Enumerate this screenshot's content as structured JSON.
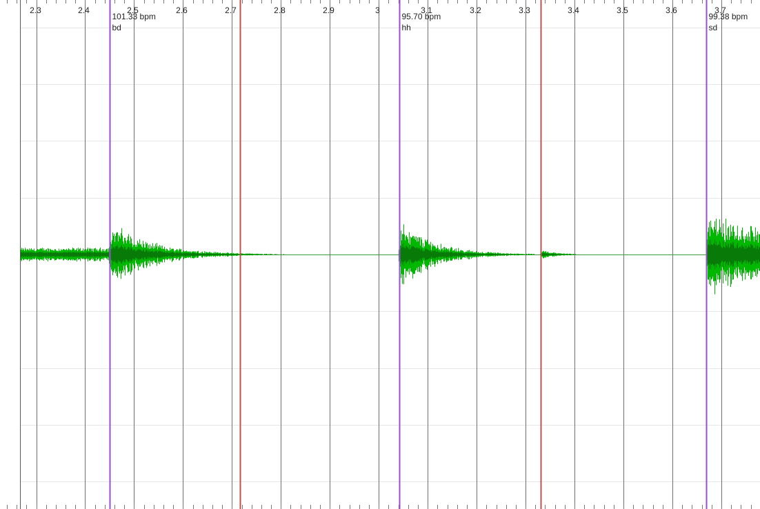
{
  "view": {
    "time_start": 2.226,
    "time_end": 3.779,
    "ticks": [
      "2.3",
      "2.4",
      "2.5",
      "2.6",
      "2.7",
      "2.8",
      "2.9",
      "3",
      "3.1",
      "3.2",
      "3.3",
      "3.4",
      "3.5",
      "3.6",
      "3.7"
    ]
  },
  "markers": [
    {
      "time": 2.4495,
      "kind": "onset",
      "color": "#9a4dd6",
      "tempo": "101.33 bpm",
      "label": "bd"
    },
    {
      "time": 2.7161,
      "kind": "boundary",
      "color": "#c0504d"
    },
    {
      "time": 3.0413,
      "kind": "onset",
      "color": "#9a4dd6",
      "tempo": "95.70 bpm",
      "label": "hh"
    },
    {
      "time": 3.3309,
      "kind": "boundary",
      "color": "#c0504d"
    },
    {
      "time": 3.6696,
      "kind": "onset",
      "color": "#9a4dd6",
      "tempo": "99.38 bpm",
      "label": "sd"
    }
  ],
  "waveform": {
    "outer_color": "#00b800",
    "inner_color": "#087a08",
    "center_line_color": "#3a9a3a",
    "events": [
      "bd",
      "hh",
      "sd"
    ]
  },
  "colors": {
    "grid": "#6e6e6e",
    "horizontal_grid": "#e6e6e6",
    "background": "#ffffff"
  }
}
